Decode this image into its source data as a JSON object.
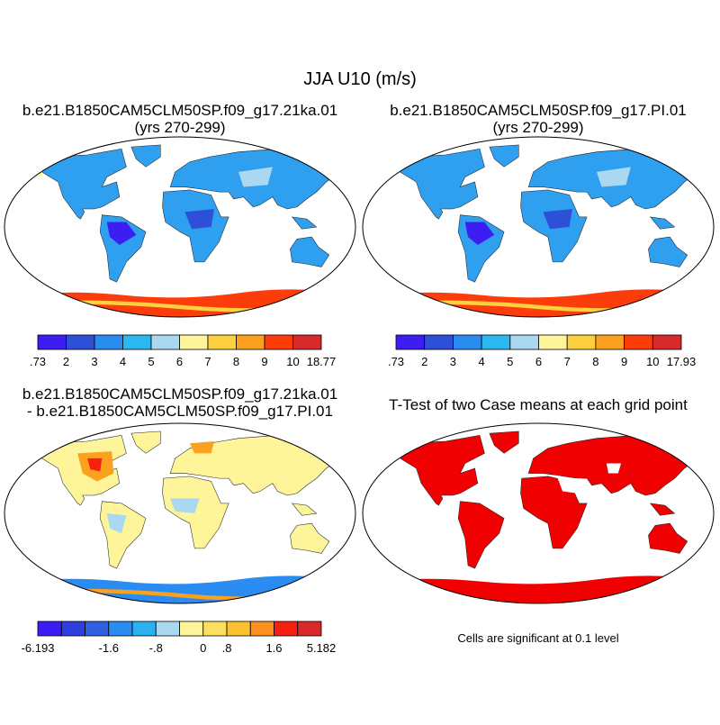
{
  "title": "JJA U10 (m/s)",
  "panels": [
    {
      "title": "b.e21.B1850CAM5CLM50SP.f09_g17.21ka.01",
      "subtitle": "(yrs 270-299)",
      "colorbar": {
        "colors": [
          "#3d1ef2",
          "#2e50d8",
          "#2a8cf0",
          "#2bb8f0",
          "#a9d8f0",
          "#fef59a",
          "#fdd040",
          "#fca020",
          "#fd3c0c",
          "#d82a2a"
        ],
        "labels": [
          ".73",
          "2",
          "3",
          "4",
          "5",
          "6",
          "7",
          "8",
          "9",
          "10",
          "18.77"
        ]
      }
    },
    {
      "title": "b.e21.B1850CAM5CLM50SP.f09_g17.PI.01",
      "subtitle": "(yrs 270-299)",
      "colorbar": {
        "colors": [
          "#3d1ef2",
          "#2e50d8",
          "#2a8cf0",
          "#2bb8f0",
          "#a9d8f0",
          "#fef59a",
          "#fdd040",
          "#fca020",
          "#fd3c0c",
          "#d82a2a"
        ],
        "labels": [
          ".73",
          "2",
          "3",
          "4",
          "5",
          "6",
          "7",
          "8",
          "9",
          "10",
          "17.93"
        ]
      }
    },
    {
      "title": "b.e21.B1850CAM5CLM50SP.f09_g17.21ka.01",
      "subtitle": "- b.e21.B1850CAM5CLM50SP.f09_g17.PI.01",
      "colorbar": {
        "colors": [
          "#3d1ef2",
          "#2e3fe0",
          "#2e60e0",
          "#2a8cf0",
          "#2bb0f0",
          "#a9d8f0",
          "#fef59a",
          "#fde060",
          "#fdc030",
          "#fc9020",
          "#f52010",
          "#d82a2a"
        ],
        "labels": [
          "-6.193",
          null,
          null,
          "-1.6",
          null,
          "-.8",
          null,
          "0",
          ".8",
          null,
          "1.6",
          null,
          "5.182"
        ]
      }
    },
    {
      "title": "T-Test of two Case means at each grid point",
      "note": "Cells are significant at 0.1 level"
    }
  ]
}
